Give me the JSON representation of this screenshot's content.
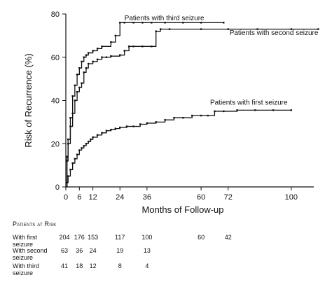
{
  "chart_data": {
    "type": "line",
    "title": "",
    "xlabel": "Months of Follow-up",
    "ylabel": "Risk of Recurrence (%)",
    "xlim": [
      0,
      110
    ],
    "ylim": [
      0,
      80
    ],
    "x_ticks": [
      0,
      6,
      12,
      24,
      36,
      60,
      72,
      100
    ],
    "y_ticks": [
      0,
      20,
      40,
      60,
      80
    ],
    "grid": false,
    "legend": "inline labels",
    "series": [
      {
        "name": "Patients with first seizure",
        "color": "#111111",
        "points": [
          [
            0,
            0
          ],
          [
            0.5,
            2
          ],
          [
            1,
            5
          ],
          [
            2,
            8
          ],
          [
            3,
            11
          ],
          [
            4,
            13
          ],
          [
            5,
            15
          ],
          [
            6,
            17
          ],
          [
            7,
            18
          ],
          [
            8,
            19
          ],
          [
            9,
            20
          ],
          [
            10,
            21
          ],
          [
            11,
            22
          ],
          [
            12,
            23
          ],
          [
            14,
            24
          ],
          [
            16,
            25
          ],
          [
            18,
            26
          ],
          [
            20,
            26.5
          ],
          [
            22,
            27
          ],
          [
            24,
            27.5
          ],
          [
            27,
            28
          ],
          [
            30,
            28
          ],
          [
            33,
            29
          ],
          [
            36,
            29.5
          ],
          [
            40,
            30
          ],
          [
            44,
            31
          ],
          [
            48,
            32
          ],
          [
            52,
            32
          ],
          [
            56,
            33
          ],
          [
            60,
            33
          ],
          [
            63,
            33
          ],
          [
            66,
            35
          ],
          [
            70,
            35
          ],
          [
            76,
            35.5
          ],
          [
            84,
            35.5
          ],
          [
            92,
            35.5
          ],
          [
            100,
            35.5
          ]
        ]
      },
      {
        "name": "Patients with second seizure",
        "color": "#111111",
        "points": [
          [
            0,
            0
          ],
          [
            0.5,
            14
          ],
          [
            1,
            20
          ],
          [
            2,
            28
          ],
          [
            3,
            34
          ],
          [
            4,
            40
          ],
          [
            5,
            44
          ],
          [
            6,
            46
          ],
          [
            7,
            48
          ],
          [
            8,
            53
          ],
          [
            9,
            55
          ],
          [
            10,
            57
          ],
          [
            12,
            58
          ],
          [
            14,
            59
          ],
          [
            16,
            60
          ],
          [
            18,
            60
          ],
          [
            20,
            60.5
          ],
          [
            24,
            61
          ],
          [
            26,
            63
          ],
          [
            28,
            65
          ],
          [
            30,
            65
          ],
          [
            34,
            65
          ],
          [
            38,
            65
          ],
          [
            40,
            72
          ],
          [
            42,
            73
          ],
          [
            46,
            73
          ],
          [
            60,
            73
          ],
          [
            72,
            73
          ],
          [
            85,
            73
          ],
          [
            100,
            73
          ],
          [
            112,
            73
          ]
        ]
      },
      {
        "name": "Patients with third seizure",
        "color": "#111111",
        "points": [
          [
            0,
            0
          ],
          [
            0.5,
            12
          ],
          [
            1,
            22
          ],
          [
            2,
            32
          ],
          [
            3,
            42
          ],
          [
            4,
            47
          ],
          [
            5,
            52
          ],
          [
            6,
            55
          ],
          [
            7,
            58
          ],
          [
            8,
            60
          ],
          [
            9,
            61
          ],
          [
            10,
            62
          ],
          [
            12,
            63
          ],
          [
            14,
            64
          ],
          [
            16,
            65
          ],
          [
            20,
            67
          ],
          [
            22,
            70
          ],
          [
            24,
            76
          ],
          [
            26,
            76
          ],
          [
            30,
            76
          ],
          [
            34,
            76
          ],
          [
            38,
            76
          ],
          [
            44,
            76
          ],
          [
            52,
            76
          ],
          [
            60,
            76
          ],
          [
            70,
            76
          ]
        ]
      }
    ]
  },
  "risk_table": {
    "title": "Patients at Risk",
    "rows": [
      {
        "label": "With first\nseizure",
        "values": [
          [
            "0",
            "204"
          ],
          [
            "6",
            "176"
          ],
          [
            "12",
            "153"
          ],
          [
            "24",
            "117"
          ],
          [
            "36",
            "100"
          ],
          [
            "60",
            "60"
          ],
          [
            "72",
            "42"
          ]
        ]
      },
      {
        "label": "With second\nseizure",
        "values": [
          [
            "0",
            "63"
          ],
          [
            "6",
            "36"
          ],
          [
            "12",
            "24"
          ],
          [
            "24",
            "19"
          ],
          [
            "36",
            "13"
          ]
        ]
      },
      {
        "label": "With third\nseizure",
        "values": [
          [
            "0",
            "41"
          ],
          [
            "6",
            "18"
          ],
          [
            "12",
            "12"
          ],
          [
            "24",
            "8"
          ],
          [
            "36",
            "4"
          ]
        ]
      }
    ]
  }
}
